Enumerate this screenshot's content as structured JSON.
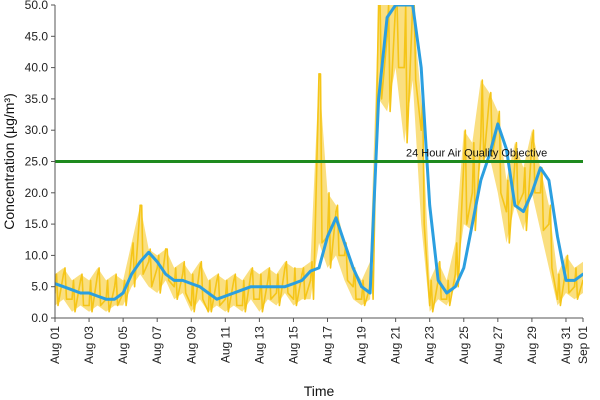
{
  "chart_data": {
    "type": "line",
    "xlabel": "Time",
    "ylabel": "Concentration (µg/m³)",
    "ylim": [
      0,
      50
    ],
    "yticks": [
      "0.0",
      "5.0",
      "10.0",
      "15.0",
      "20.0",
      "25.0",
      "30.0",
      "35.0",
      "40.0",
      "45.0",
      "50.0"
    ],
    "xlim": [
      "2023-08-01",
      "2023-09-01"
    ],
    "xticks": [
      "Aug 01",
      "Aug 03",
      "Aug 05",
      "Aug 07",
      "Aug 09",
      "Aug 11",
      "Aug 13",
      "Aug 15",
      "Aug 17",
      "Aug 19",
      "Aug 21",
      "Aug 23",
      "Aug 25",
      "Aug 27",
      "Aug 29",
      "Aug 31",
      "Sep 01"
    ],
    "grid": false,
    "colors": {
      "hourly": "#f5c518",
      "rolling": "#2b9fe0",
      "objective": "#1e8a1e"
    },
    "objective": {
      "value": 25,
      "label": "24 Hour Air Quality Objective"
    },
    "series": [
      {
        "style": "hourly-concentration",
        "x": [
          "2023-08-01",
          "2023-08-01T12:00",
          "2023-08-02",
          "2023-08-02T12:00",
          "2023-08-03",
          "2023-08-03T12:00",
          "2023-08-04",
          "2023-08-04T12:00",
          "2023-08-05",
          "2023-08-05T12:00",
          "2023-08-06",
          "2023-08-06T12:00",
          "2023-08-07",
          "2023-08-07T12:00",
          "2023-08-08",
          "2023-08-08T12:00",
          "2023-08-09",
          "2023-08-09T12:00",
          "2023-08-10",
          "2023-08-10T12:00",
          "2023-08-11",
          "2023-08-11T12:00",
          "2023-08-12",
          "2023-08-12T12:00",
          "2023-08-13",
          "2023-08-13T12:00",
          "2023-08-14",
          "2023-08-14T12:00",
          "2023-08-15",
          "2023-08-15T12:00",
          "2023-08-16",
          "2023-08-16T12:00",
          "2023-08-17",
          "2023-08-17T12:00",
          "2023-08-18",
          "2023-08-18T12:00",
          "2023-08-19",
          "2023-08-19T12:00",
          "2023-08-20",
          "2023-08-20T12:00",
          "2023-08-21",
          "2023-08-21T12:00",
          "2023-08-22",
          "2023-08-22T12:00",
          "2023-08-23",
          "2023-08-23T12:00",
          "2023-08-24",
          "2023-08-24T12:00",
          "2023-08-25",
          "2023-08-25T12:00",
          "2023-08-26",
          "2023-08-26T12:00",
          "2023-08-27",
          "2023-08-27T12:00",
          "2023-08-28",
          "2023-08-28T12:00",
          "2023-08-29",
          "2023-08-29T12:00",
          "2023-08-30",
          "2023-08-30T12:00",
          "2023-08-31",
          "2023-08-31T12:00",
          "2023-09-01"
        ],
        "values": [
          4,
          7,
          3,
          6,
          2,
          7,
          3,
          5,
          4,
          10,
          18,
          9,
          8,
          11,
          5,
          7,
          2,
          8,
          1,
          6,
          3,
          6,
          2,
          7,
          3,
          6,
          4,
          8,
          3,
          7,
          6,
          39,
          13,
          17,
          10,
          5,
          3,
          5,
          50,
          45,
          52,
          40,
          50,
          30,
          2,
          6,
          3,
          7,
          25,
          20,
          29,
          35,
          31,
          17,
          25,
          20,
          28,
          20,
          15,
          3,
          8,
          5,
          6
        ],
        "range_band": [
          [
            2,
            7
          ],
          [
            3,
            8
          ],
          [
            1,
            6
          ],
          [
            2,
            7
          ],
          [
            1,
            6
          ],
          [
            2,
            8
          ],
          [
            1,
            6
          ],
          [
            2,
            7
          ],
          [
            2,
            6
          ],
          [
            5,
            12
          ],
          [
            7,
            18
          ],
          [
            5,
            11
          ],
          [
            4,
            10
          ],
          [
            6,
            11
          ],
          [
            3,
            8
          ],
          [
            4,
            9
          ],
          [
            1,
            7
          ],
          [
            3,
            9
          ],
          [
            1,
            6
          ],
          [
            2,
            7
          ],
          [
            1,
            6
          ],
          [
            2,
            7
          ],
          [
            1,
            6
          ],
          [
            3,
            8
          ],
          [
            1,
            7
          ],
          [
            3,
            8
          ],
          [
            2,
            7
          ],
          [
            4,
            9
          ],
          [
            2,
            8
          ],
          [
            3,
            8
          ],
          [
            3,
            9
          ],
          [
            12,
            39
          ],
          [
            8,
            20
          ],
          [
            10,
            18
          ],
          [
            6,
            12
          ],
          [
            3,
            8
          ],
          [
            2,
            6
          ],
          [
            3,
            9
          ],
          [
            35,
            52
          ],
          [
            33,
            52
          ],
          [
            40,
            52
          ],
          [
            28,
            52
          ],
          [
            38,
            52
          ],
          [
            15,
            35
          ],
          [
            1,
            6
          ],
          [
            3,
            9
          ],
          [
            2,
            6
          ],
          [
            5,
            12
          ],
          [
            15,
            30
          ],
          [
            14,
            28
          ],
          [
            25,
            38
          ],
          [
            26,
            36
          ],
          [
            20,
            33
          ],
          [
            12,
            22
          ],
          [
            18,
            28
          ],
          [
            14,
            24
          ],
          [
            20,
            30
          ],
          [
            14,
            24
          ],
          [
            8,
            18
          ],
          [
            2,
            7
          ],
          [
            4,
            10
          ],
          [
            3,
            8
          ],
          [
            4,
            9
          ]
        ]
      },
      {
        "style": "rolling-24h-average",
        "x": [
          "2023-08-01",
          "2023-08-01T12:00",
          "2023-08-02",
          "2023-08-02T12:00",
          "2023-08-03",
          "2023-08-03T12:00",
          "2023-08-04",
          "2023-08-04T12:00",
          "2023-08-05",
          "2023-08-05T12:00",
          "2023-08-06",
          "2023-08-06T12:00",
          "2023-08-07",
          "2023-08-07T12:00",
          "2023-08-08",
          "2023-08-08T12:00",
          "2023-08-09",
          "2023-08-09T12:00",
          "2023-08-10",
          "2023-08-10T12:00",
          "2023-08-11",
          "2023-08-11T12:00",
          "2023-08-12",
          "2023-08-12T12:00",
          "2023-08-13",
          "2023-08-13T12:00",
          "2023-08-14",
          "2023-08-14T12:00",
          "2023-08-15",
          "2023-08-15T12:00",
          "2023-08-16",
          "2023-08-16T12:00",
          "2023-08-17",
          "2023-08-17T12:00",
          "2023-08-18",
          "2023-08-18T12:00",
          "2023-08-19",
          "2023-08-19T12:00",
          "2023-08-20",
          "2023-08-20T12:00",
          "2023-08-21",
          "2023-08-21T12:00",
          "2023-08-22",
          "2023-08-22T12:00",
          "2023-08-23",
          "2023-08-23T12:00",
          "2023-08-24",
          "2023-08-24T12:00",
          "2023-08-25",
          "2023-08-25T12:00",
          "2023-08-26",
          "2023-08-26T12:00",
          "2023-08-27",
          "2023-08-27T12:00",
          "2023-08-28",
          "2023-08-28T12:00",
          "2023-08-29",
          "2023-08-29T12:00",
          "2023-08-30",
          "2023-08-30T12:00",
          "2023-08-31",
          "2023-08-31T12:00",
          "2023-09-01"
        ],
        "values": [
          5.5,
          5,
          4.5,
          4,
          4,
          3.5,
          3,
          3,
          4,
          7,
          9,
          10.5,
          9,
          7,
          6,
          6,
          5.5,
          5,
          4,
          3,
          3.5,
          4,
          4.5,
          5,
          5,
          5,
          5,
          5,
          5.5,
          6,
          7.5,
          8,
          13,
          16,
          12,
          8,
          5,
          4,
          35,
          48,
          51,
          52,
          50,
          40,
          18,
          6,
          4,
          5,
          8,
          15,
          22,
          26,
          31,
          27,
          18,
          17,
          20,
          24,
          22,
          13,
          6,
          6,
          7
        ]
      }
    ]
  }
}
